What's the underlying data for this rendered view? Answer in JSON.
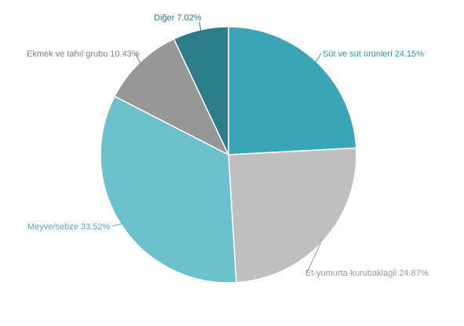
{
  "chart_data": {
    "type": "pie",
    "slices": [
      {
        "label": "Süt ve süt ürünleri",
        "value": 24.15,
        "display": "Süt ve süt ürünleri 24.15%",
        "color": "#3aa6b5",
        "label_color": "#2e98a6"
      },
      {
        "label": "Et-yumurta-kurubaklagil",
        "value": 24.87,
        "display": "Et-yumurta-kurubaklagil 24.87%",
        "color": "#bfbfbf",
        "label_color": "#9a9a9a"
      },
      {
        "label": "Meyve/sebze",
        "value": 33.52,
        "display": "Meyve/sebze 33.52%",
        "color": "#6cc2cc",
        "label_color": "#4fb0be"
      },
      {
        "label": "Ekmek ve tahıl grubu",
        "value": 10.43,
        "display": "Ekmek ve tahıl grubu 10.43%",
        "color": "#979797",
        "label_color": "#808080"
      },
      {
        "label": "Diğer",
        "value": 7.02,
        "display": "Diğer 7.02%",
        "color": "#2b7d89",
        "label_color": "#2b7d89"
      }
    ]
  }
}
